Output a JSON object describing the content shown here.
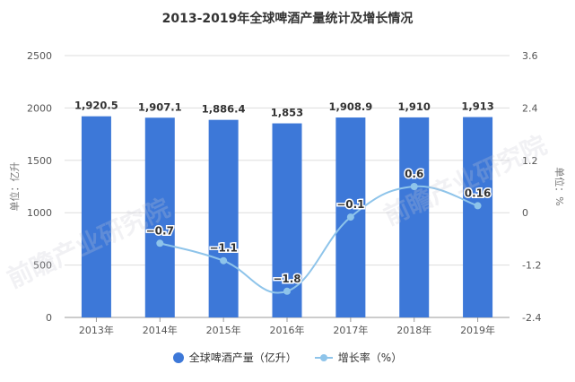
{
  "title": "2013-2019年全球啤酒产量统计及增长情况",
  "left_axis_label": "单位：亿升",
  "right_axis_label": "单位：%",
  "legend": {
    "bar_label": "全球啤酒产量（亿升）",
    "line_label": "增长率（%）"
  },
  "watermark": "前瞻产业研究院",
  "colors": {
    "bar": "#3d78d8",
    "line": "#8ec4ea",
    "grid": "#dddddd",
    "text": "#333333"
  },
  "chart_data": {
    "type": "bar",
    "title": "2013-2019年全球啤酒产量统计及增长情况",
    "categories": [
      "2013年",
      "2014年",
      "2015年",
      "2016年",
      "2017年",
      "2018年",
      "2019年"
    ],
    "series": [
      {
        "name": "全球啤酒产量（亿升）",
        "type": "bar",
        "axis": "left",
        "values": [
          1920.5,
          1907.1,
          1886.4,
          1853,
          1908.9,
          1910,
          1913
        ],
        "labels": [
          "1,920.5",
          "1,907.1",
          "1,886.4",
          "1,853",
          "1,908.9",
          "1,910",
          "1,913"
        ]
      },
      {
        "name": "增长率（%）",
        "type": "line",
        "axis": "right",
        "smooth": true,
        "values": [
          null,
          -0.7,
          -1.1,
          -1.8,
          -0.1,
          0.6,
          0.16
        ],
        "labels": [
          "",
          "-0.7",
          "-1.1",
          "-1.8",
          "-0.1",
          "0.6",
          "0.16"
        ]
      }
    ],
    "xlabel": "",
    "ylabel": "单位：亿升",
    "ylabel_right": "单位：%",
    "ylim": [
      0,
      2500
    ],
    "ylim_right": [
      -2.4,
      3.6
    ],
    "yticks": [
      0,
      500,
      1000,
      1500,
      2000,
      2500
    ],
    "yticks_right": [
      -2.4,
      -1.2,
      0,
      1.2,
      2.4,
      3.6
    ],
    "grid": true,
    "legend_position": "bottom"
  }
}
